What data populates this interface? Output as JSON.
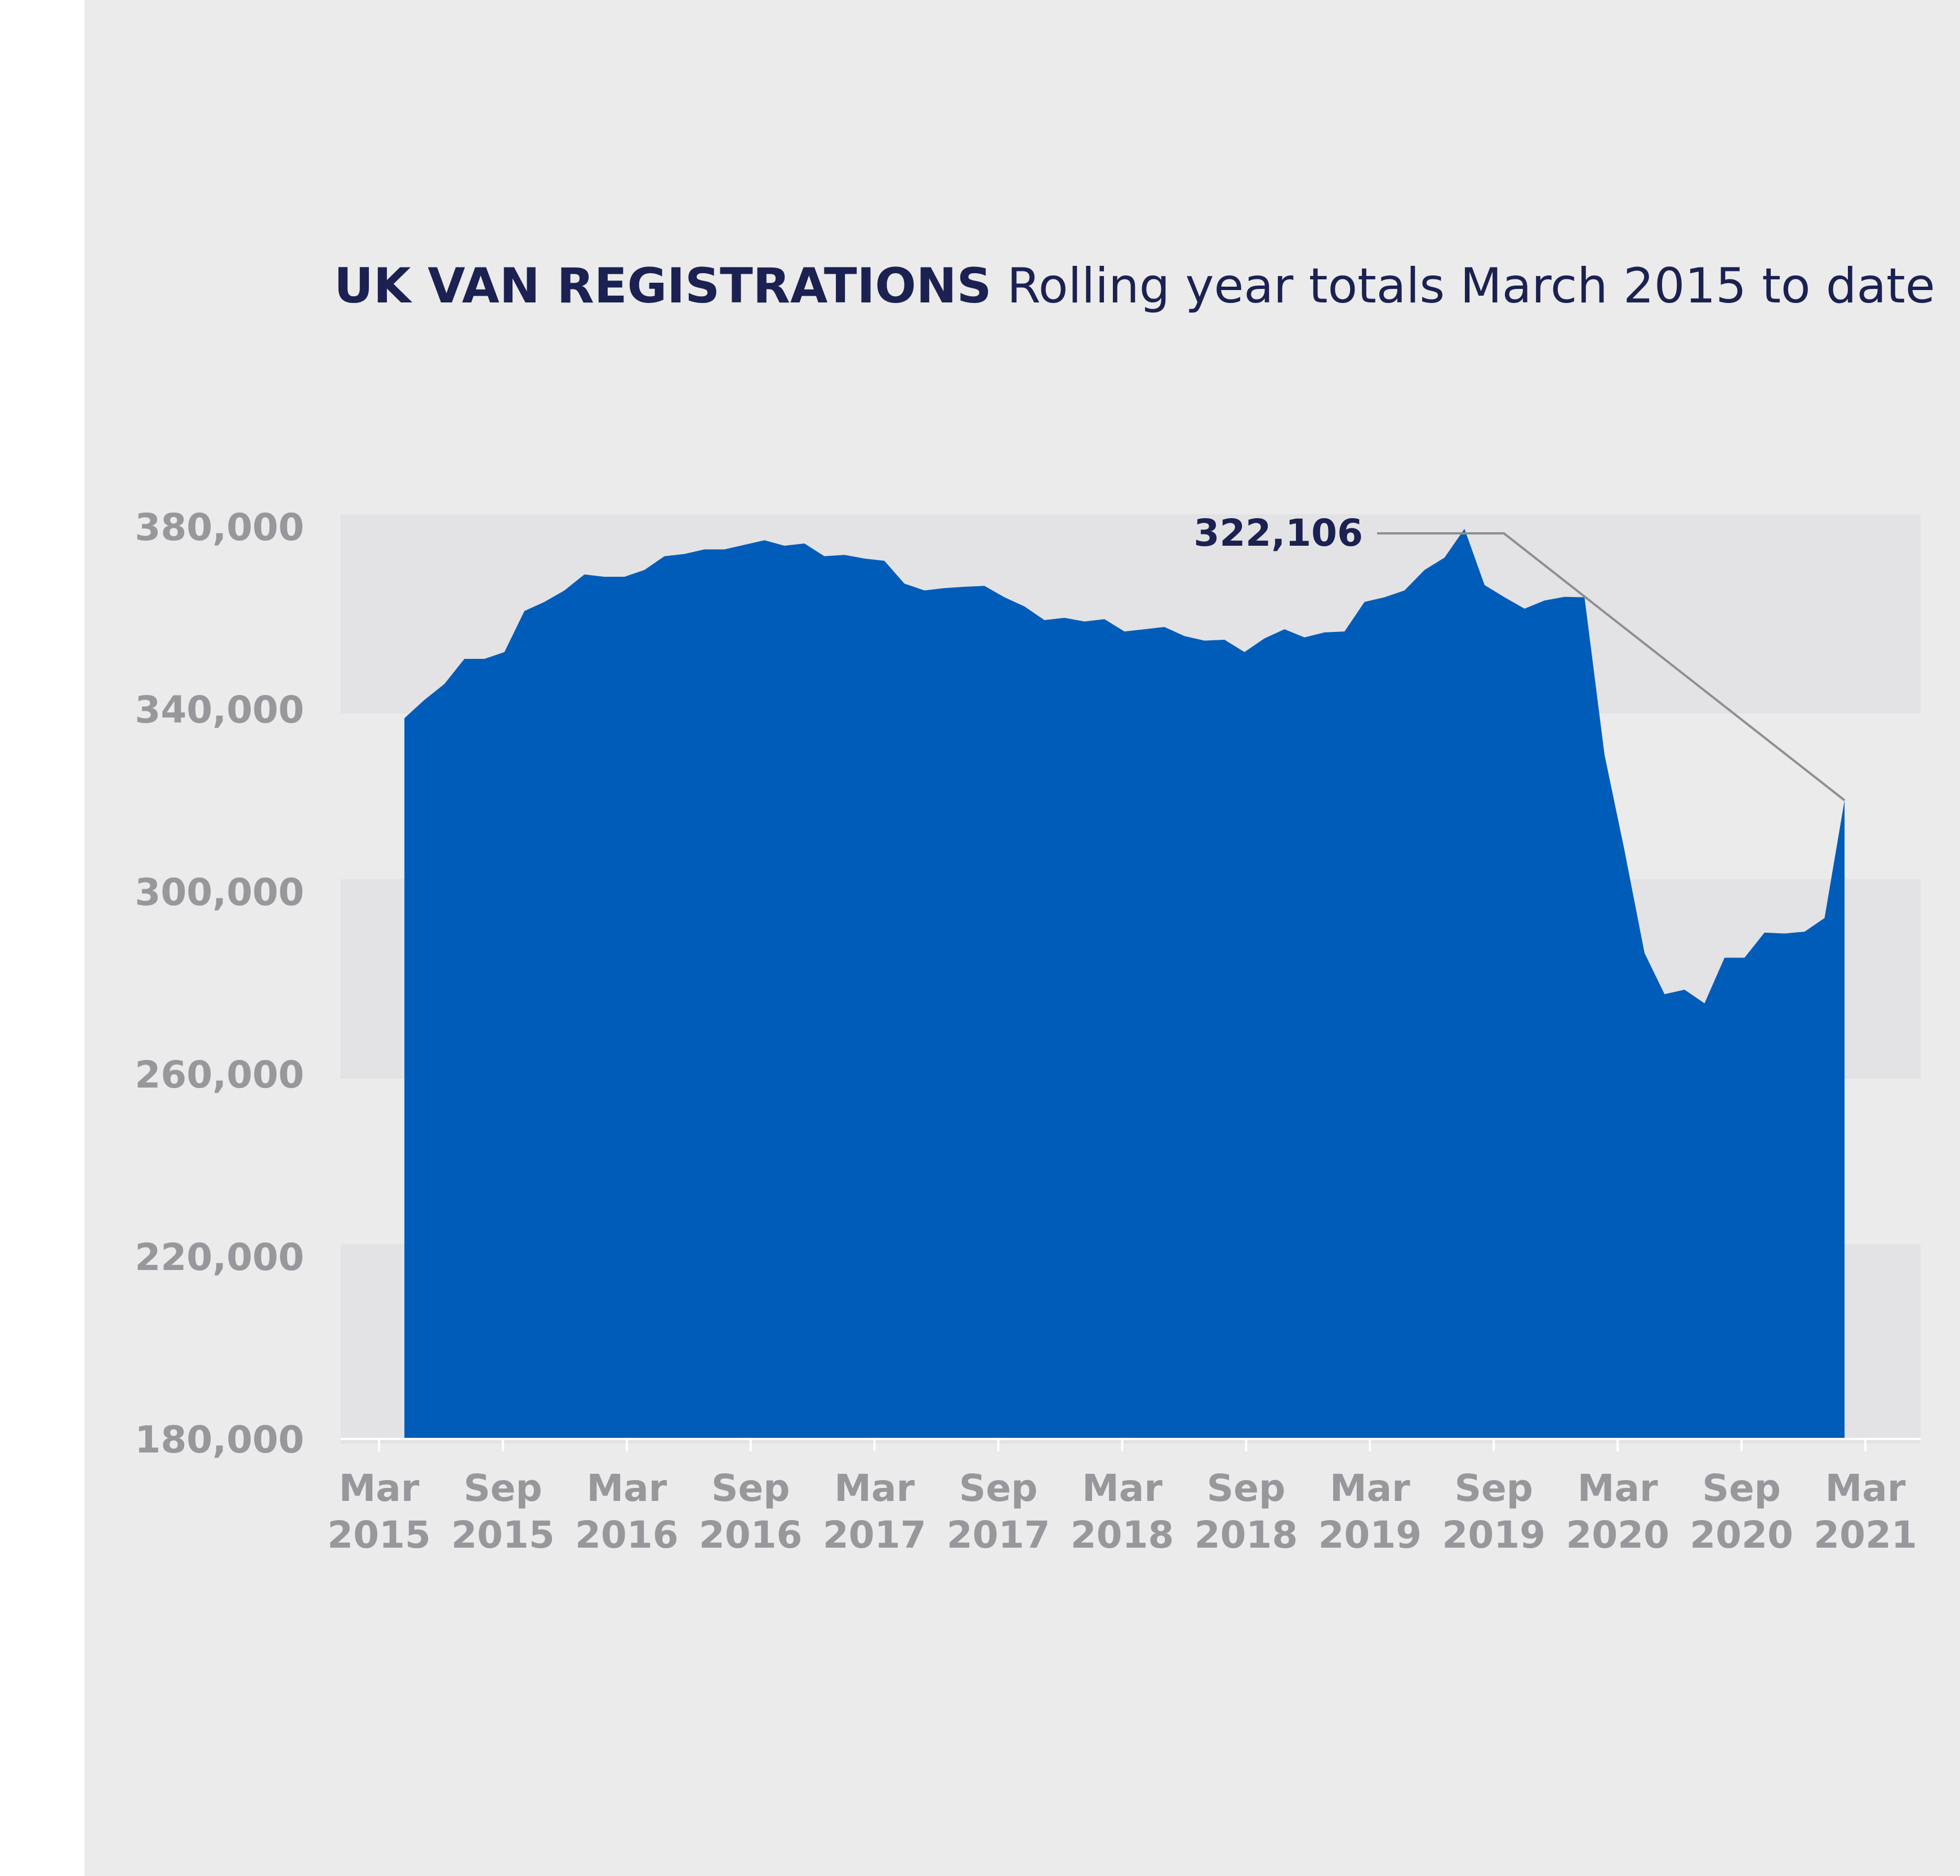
{
  "title": {
    "bold": "UK VAN REGISTRATIONS",
    "light": "Rolling year totals March 2015 to date"
  },
  "colors": {
    "background": "#ebebec",
    "band": "#e3e3e5",
    "area": "#005cb9",
    "title": "#1b2150",
    "tick": "#98979c",
    "leader": "#8f8f8f"
  },
  "chart_data": {
    "type": "area",
    "title": "UK VAN REGISTRATIONS Rolling year totals March 2015 to date",
    "xlabel": "",
    "ylabel": "",
    "ylim": [
      180000,
      380000
    ],
    "yticks": [
      "380,000",
      "340,000",
      "300,000",
      "260,000",
      "220,000",
      "180,000"
    ],
    "ytick_values": [
      380000,
      340000,
      300000,
      260000,
      220000,
      180000
    ],
    "xticks": [
      {
        "month": "Mar",
        "year": "2015",
        "index": 0
      },
      {
        "month": "Sep",
        "year": "2015",
        "index": 6
      },
      {
        "month": "Mar",
        "year": "2016",
        "index": 12
      },
      {
        "month": "Sep",
        "year": "2016",
        "index": 18
      },
      {
        "month": "Mar",
        "year": "2017",
        "index": 24
      },
      {
        "month": "Sep",
        "year": "2017",
        "index": 30
      },
      {
        "month": "Mar",
        "year": "2018",
        "index": 36
      },
      {
        "month": "Sep",
        "year": "2018",
        "index": 42
      },
      {
        "month": "Mar",
        "year": "2019",
        "index": 48
      },
      {
        "month": "Sep",
        "year": "2019",
        "index": 54
      },
      {
        "month": "Mar",
        "year": "2020",
        "index": 60
      },
      {
        "month": "Sep",
        "year": "2020",
        "index": 66
      },
      {
        "month": "Mar",
        "year": "2021",
        "index": 72
      }
    ],
    "grid_bands": true,
    "series": [
      {
        "values": [
          338000,
          342000,
          345500,
          351000,
          351000,
          352500,
          361500,
          363500,
          366000,
          369500,
          369000,
          369000,
          370500,
          373500,
          374000,
          375000,
          375000,
          376000,
          377000,
          375800,
          376300,
          373500,
          373800,
          373000,
          372500,
          367500,
          366000,
          366500,
          366800,
          367000,
          364500,
          362500,
          359500,
          360000,
          359200,
          359700,
          357000,
          357500,
          358000,
          356000,
          355000,
          355200,
          352500,
          355500,
          357500,
          355700,
          356800,
          357000,
          363500,
          364500,
          366000,
          370500,
          373200,
          379500,
          367200,
          364500,
          362000,
          363800,
          364600,
          364500,
          330000,
          309000,
          286500,
          277500,
          278500,
          275500,
          285500,
          285500,
          291000,
          290800,
          291200,
          294200,
          320000
        ]
      }
    ],
    "annotation": {
      "label": "322,106",
      "point_index": 53
    }
  }
}
